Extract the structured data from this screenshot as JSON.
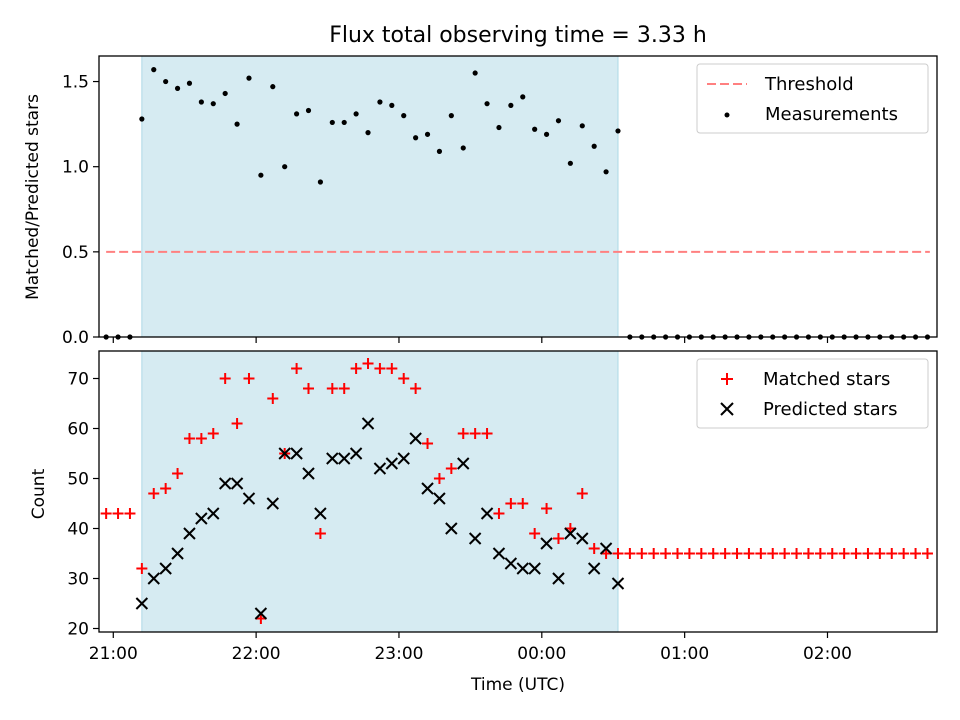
{
  "chart_data": [
    {
      "type": "scatter",
      "title": "Flux total observing time = 3.33 h",
      "xlabel": "",
      "ylabel": "Matched/Predicted stars",
      "xlim": [
        "20:54",
        "02:46"
      ],
      "ylim": [
        0,
        1.65
      ],
      "yticks": [
        0.0,
        0.5,
        1.0,
        1.5
      ],
      "ytick_labels": [
        "0.0",
        "0.5",
        "1.0",
        "1.5"
      ],
      "grid": false,
      "legend_position": "top-right",
      "observing_window": {
        "start": "21:12",
        "end": "00:32",
        "color": "#add8e6"
      },
      "threshold": {
        "name": "Threshold",
        "value": 0.5,
        "x_range": [
          "20:57",
          "02:43"
        ],
        "color": "#ff8080",
        "style": "dashed"
      },
      "series": [
        {
          "name": "Measurements",
          "color": "#000000",
          "marker": "dot",
          "points": [
            [
              "20:57",
              0.0
            ],
            [
              "21:02",
              0.0
            ],
            [
              "21:07",
              0.0
            ],
            [
              "21:12",
              1.28
            ],
            [
              "21:17",
              1.57
            ],
            [
              "21:22",
              1.5
            ],
            [
              "21:27",
              1.46
            ],
            [
              "21:32",
              1.49
            ],
            [
              "21:37",
              1.38
            ],
            [
              "21:42",
              1.37
            ],
            [
              "21:47",
              1.43
            ],
            [
              "21:52",
              1.25
            ],
            [
              "21:57",
              1.52
            ],
            [
              "22:02",
              0.95
            ],
            [
              "22:07",
              1.47
            ],
            [
              "22:12",
              1.0
            ],
            [
              "22:17",
              1.31
            ],
            [
              "22:22",
              1.33
            ],
            [
              "22:27",
              0.91
            ],
            [
              "22:32",
              1.26
            ],
            [
              "22:37",
              1.26
            ],
            [
              "22:42",
              1.31
            ],
            [
              "22:47",
              1.2
            ],
            [
              "22:52",
              1.38
            ],
            [
              "22:57",
              1.36
            ],
            [
              "23:02",
              1.3
            ],
            [
              "23:07",
              1.17
            ],
            [
              "23:12",
              1.19
            ],
            [
              "23:17",
              1.09
            ],
            [
              "23:22",
              1.3
            ],
            [
              "23:27",
              1.11
            ],
            [
              "23:32",
              1.55
            ],
            [
              "23:37",
              1.37
            ],
            [
              "23:42",
              1.23
            ],
            [
              "23:47",
              1.36
            ],
            [
              "23:52",
              1.41
            ],
            [
              "23:57",
              1.22
            ],
            [
              "00:02",
              1.19
            ],
            [
              "00:07",
              1.27
            ],
            [
              "00:12",
              1.02
            ],
            [
              "00:17",
              1.24
            ],
            [
              "00:22",
              1.12
            ],
            [
              "00:27",
              0.97
            ],
            [
              "00:32",
              1.21
            ],
            [
              "00:37",
              0.0
            ],
            [
              "00:42",
              0.0
            ],
            [
              "00:47",
              0.0
            ],
            [
              "00:52",
              0.0
            ],
            [
              "00:57",
              0.0
            ],
            [
              "01:02",
              0.0
            ],
            [
              "01:07",
              0.0
            ],
            [
              "01:12",
              0.0
            ],
            [
              "01:17",
              0.0
            ],
            [
              "01:22",
              0.0
            ],
            [
              "01:27",
              0.0
            ],
            [
              "01:32",
              0.0
            ],
            [
              "01:37",
              0.0
            ],
            [
              "01:42",
              0.0
            ],
            [
              "01:47",
              0.0
            ],
            [
              "01:52",
              0.0
            ],
            [
              "01:57",
              0.0
            ],
            [
              "02:02",
              0.0
            ],
            [
              "02:07",
              0.0
            ],
            [
              "02:12",
              0.0
            ],
            [
              "02:17",
              0.0
            ],
            [
              "02:22",
              0.0
            ],
            [
              "02:27",
              0.0
            ],
            [
              "02:32",
              0.0
            ],
            [
              "02:37",
              0.0
            ],
            [
              "02:42",
              0.0
            ]
          ]
        }
      ]
    },
    {
      "type": "scatter",
      "title": "",
      "xlabel": "Time (UTC)",
      "ylabel": "Count",
      "xlim": [
        "20:54",
        "02:46"
      ],
      "ylim": [
        19.3,
        75.5
      ],
      "xticks": [
        "21:00",
        "22:00",
        "23:00",
        "00:00",
        "01:00",
        "02:00"
      ],
      "xtick_labels": [
        "21:00",
        "22:00",
        "23:00",
        "00:00",
        "01:00",
        "02:00"
      ],
      "yticks": [
        20,
        30,
        40,
        50,
        60,
        70
      ],
      "ytick_labels": [
        "20",
        "30",
        "40",
        "50",
        "60",
        "70"
      ],
      "grid": false,
      "legend_position": "top-right",
      "observing_window": {
        "start": "21:12",
        "end": "00:32",
        "color": "#add8e6"
      },
      "series": [
        {
          "name": "Matched stars",
          "color": "#ff0000",
          "marker": "plus",
          "points": [
            [
              "20:57",
              43
            ],
            [
              "21:02",
              43
            ],
            [
              "21:07",
              43
            ],
            [
              "21:12",
              32
            ],
            [
              "21:17",
              47
            ],
            [
              "21:22",
              48
            ],
            [
              "21:27",
              51
            ],
            [
              "21:32",
              58
            ],
            [
              "21:37",
              58
            ],
            [
              "21:42",
              59
            ],
            [
              "21:47",
              70
            ],
            [
              "21:52",
              61
            ],
            [
              "21:57",
              70
            ],
            [
              "22:02",
              22
            ],
            [
              "22:07",
              66
            ],
            [
              "22:12",
              55
            ],
            [
              "22:17",
              72
            ],
            [
              "22:22",
              68
            ],
            [
              "22:27",
              39
            ],
            [
              "22:32",
              68
            ],
            [
              "22:37",
              68
            ],
            [
              "22:42",
              72
            ],
            [
              "22:47",
              73
            ],
            [
              "22:52",
              72
            ],
            [
              "22:57",
              72
            ],
            [
              "23:02",
              70
            ],
            [
              "23:07",
              68
            ],
            [
              "23:12",
              57
            ],
            [
              "23:17",
              50
            ],
            [
              "23:22",
              52
            ],
            [
              "23:27",
              59
            ],
            [
              "23:32",
              59
            ],
            [
              "23:37",
              59
            ],
            [
              "23:42",
              43
            ],
            [
              "23:47",
              45
            ],
            [
              "23:52",
              45
            ],
            [
              "23:57",
              39
            ],
            [
              "00:02",
              44
            ],
            [
              "00:07",
              38
            ],
            [
              "00:12",
              40
            ],
            [
              "00:17",
              47
            ],
            [
              "00:22",
              36
            ],
            [
              "00:27",
              35
            ],
            [
              "00:32",
              35
            ],
            [
              "00:37",
              35
            ],
            [
              "00:42",
              35
            ],
            [
              "00:47",
              35
            ],
            [
              "00:52",
              35
            ],
            [
              "00:57",
              35
            ],
            [
              "01:02",
              35
            ],
            [
              "01:07",
              35
            ],
            [
              "01:12",
              35
            ],
            [
              "01:17",
              35
            ],
            [
              "01:22",
              35
            ],
            [
              "01:27",
              35
            ],
            [
              "01:32",
              35
            ],
            [
              "01:37",
              35
            ],
            [
              "01:42",
              35
            ],
            [
              "01:47",
              35
            ],
            [
              "01:52",
              35
            ],
            [
              "01:57",
              35
            ],
            [
              "02:02",
              35
            ],
            [
              "02:07",
              35
            ],
            [
              "02:12",
              35
            ],
            [
              "02:17",
              35
            ],
            [
              "02:22",
              35
            ],
            [
              "02:27",
              35
            ],
            [
              "02:32",
              35
            ],
            [
              "02:37",
              35
            ],
            [
              "02:42",
              35
            ]
          ]
        },
        {
          "name": "Predicted stars",
          "color": "#000000",
          "marker": "x",
          "points": [
            [
              "21:12",
              25
            ],
            [
              "21:17",
              30
            ],
            [
              "21:22",
              32
            ],
            [
              "21:27",
              35
            ],
            [
              "21:32",
              39
            ],
            [
              "21:37",
              42
            ],
            [
              "21:42",
              43
            ],
            [
              "21:47",
              49
            ],
            [
              "21:52",
              49
            ],
            [
              "21:57",
              46
            ],
            [
              "22:02",
              23
            ],
            [
              "22:07",
              45
            ],
            [
              "22:12",
              55
            ],
            [
              "22:17",
              55
            ],
            [
              "22:22",
              51
            ],
            [
              "22:27",
              43
            ],
            [
              "22:32",
              54
            ],
            [
              "22:37",
              54
            ],
            [
              "22:42",
              55
            ],
            [
              "22:47",
              61
            ],
            [
              "22:52",
              52
            ],
            [
              "22:57",
              53
            ],
            [
              "23:02",
              54
            ],
            [
              "23:07",
              58
            ],
            [
              "23:12",
              48
            ],
            [
              "23:17",
              46
            ],
            [
              "23:22",
              40
            ],
            [
              "23:27",
              53
            ],
            [
              "23:32",
              38
            ],
            [
              "23:37",
              43
            ],
            [
              "23:42",
              35
            ],
            [
              "23:47",
              33
            ],
            [
              "23:52",
              32
            ],
            [
              "23:57",
              32
            ],
            [
              "00:02",
              37
            ],
            [
              "00:07",
              30
            ],
            [
              "00:12",
              39
            ],
            [
              "00:17",
              38
            ],
            [
              "00:22",
              32
            ],
            [
              "00:27",
              36
            ],
            [
              "00:32",
              29
            ]
          ]
        }
      ]
    }
  ]
}
